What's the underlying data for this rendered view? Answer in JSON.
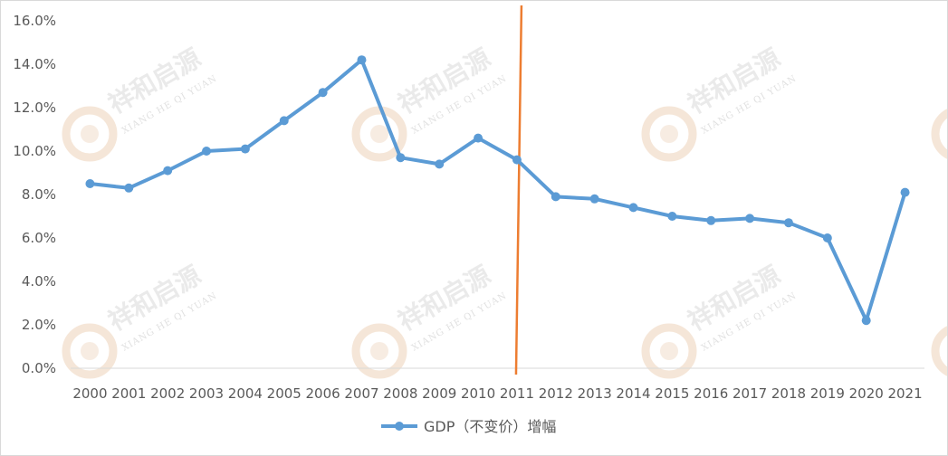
{
  "chart_data": {
    "type": "line",
    "title": "",
    "xlabel": "",
    "ylabel": "",
    "categories": [
      "2000",
      "2001",
      "2002",
      "2003",
      "2004",
      "2005",
      "2006",
      "2007",
      "2008",
      "2009",
      "2010",
      "2011",
      "2012",
      "2013",
      "2014",
      "2015",
      "2016",
      "2017",
      "2018",
      "2019",
      "2020",
      "2021"
    ],
    "series": [
      {
        "name": "GDP（不变价）增幅",
        "values": [
          8.5,
          8.3,
          9.1,
          10.0,
          10.1,
          11.4,
          12.7,
          14.2,
          9.7,
          9.4,
          10.6,
          9.6,
          7.9,
          7.8,
          7.4,
          7.0,
          6.8,
          6.9,
          6.7,
          6.0,
          2.2,
          8.1
        ],
        "color": "#5b9bd5"
      }
    ],
    "ylim": [
      0,
      16
    ],
    "yticks": [
      "0.0%",
      "2.0%",
      "4.0%",
      "6.0%",
      "8.0%",
      "10.0%",
      "12.0%",
      "14.0%",
      "16.0%"
    ],
    "grid": false,
    "legend_position": "bottom-center",
    "annotations": [
      {
        "type": "vertical-line",
        "x": "2011",
        "color": "#ed7d31"
      }
    ]
  },
  "watermark": {
    "text": "祥和启源",
    "subtext": "XIANG HE QI YUAN"
  }
}
